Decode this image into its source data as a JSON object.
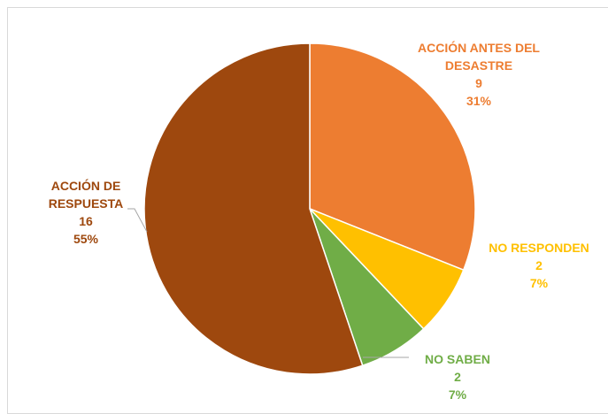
{
  "chart_data": {
    "type": "pie",
    "categories": [
      "ACCIÓN ANTES DEL DESASTRE",
      "NO RESPONDEN",
      "NO SABEN",
      "ACCIÓN DE RESPUESTA"
    ],
    "values": [
      9,
      2,
      2,
      16
    ],
    "percent_labels": [
      "31%",
      "7%",
      "7%",
      "55%"
    ],
    "colors": [
      "#ED7D31",
      "#FFC000",
      "#70AD47",
      "#9E480E"
    ]
  }
}
